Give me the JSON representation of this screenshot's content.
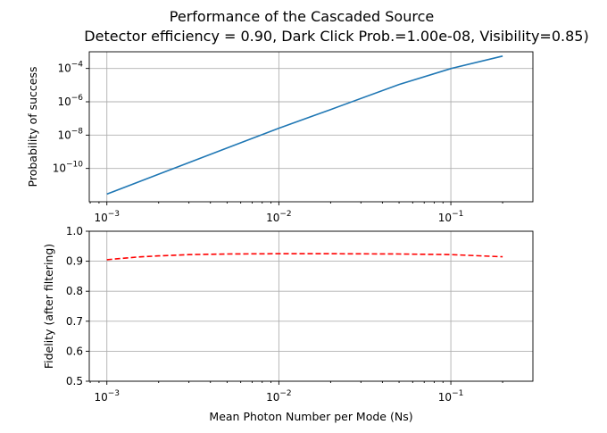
{
  "chart_data": [
    {
      "type": "line",
      "title": "Performance of the Cascaded Source",
      "subtitle": "Detector efficiency = 0.90, Dark Click Prob.=1.00e-08, Visibility=0.85)",
      "xlabel": "",
      "ylabel": "Probability of success",
      "xscale": "log",
      "yscale": "log",
      "xlim": [
        0.00079,
        0.3
      ],
      "ylim": [
        1e-12,
        0.001
      ],
      "grid": true,
      "xticks": [
        {
          "base": "10",
          "exp": "−3"
        },
        {
          "base": "10",
          "exp": "−2"
        },
        {
          "base": "10",
          "exp": "−1"
        }
      ],
      "yticks": [
        {
          "base": "10",
          "exp": "−10"
        },
        {
          "base": "10",
          "exp": "−8"
        },
        {
          "base": "10",
          "exp": "−6"
        },
        {
          "base": "10",
          "exp": "−4"
        }
      ],
      "series": [
        {
          "color": "#1f77b4",
          "style": "solid",
          "x": [
            0.001,
            0.002,
            0.005,
            0.01,
            0.02,
            0.05,
            0.1,
            0.2
          ],
          "y": [
            2.9e-12,
            4.5e-11,
            1.7e-09,
            2.6e-08,
            3.4e-07,
            1.1e-05,
            9.8e-05,
            0.00055
          ]
        }
      ]
    },
    {
      "type": "line",
      "xlabel": "Mean Photon Number per Mode (Ns)",
      "ylabel": "Fidelity (after filtering)",
      "xscale": "log",
      "yscale": "linear",
      "xlim": [
        0.00079,
        0.3
      ],
      "ylim": [
        0.5,
        1.0
      ],
      "grid": true,
      "xticks": [
        {
          "base": "10",
          "exp": "−3"
        },
        {
          "base": "10",
          "exp": "−2"
        },
        {
          "base": "10",
          "exp": "−1"
        }
      ],
      "yticks": [
        "0.5",
        "0.6",
        "0.7",
        "0.8",
        "0.9",
        "1.0"
      ],
      "series": [
        {
          "color": "#ff0000",
          "style": "dashed",
          "x": [
            0.001,
            0.0015,
            0.002,
            0.003,
            0.005,
            0.01,
            0.02,
            0.05,
            0.1,
            0.2
          ],
          "y": [
            0.905,
            0.914,
            0.918,
            0.922,
            0.924,
            0.925,
            0.925,
            0.924,
            0.922,
            0.915
          ]
        }
      ]
    }
  ]
}
